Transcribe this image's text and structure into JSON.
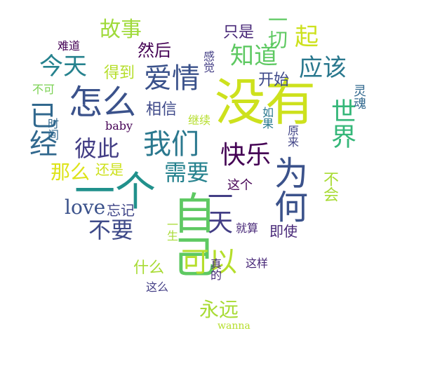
{
  "words": [
    {
      "text": "没有",
      "color": "#cde11d"
    },
    {
      "text": "自己",
      "color": "#5ec962"
    },
    {
      "text": "一个",
      "color": "#21918c"
    },
    {
      "text": "怎么",
      "color": "#3b528b"
    },
    {
      "text": "爱情",
      "color": "#3b528b"
    },
    {
      "text": "我们",
      "color": "#2a788e"
    },
    {
      "text": "快乐",
      "color": "#440154"
    },
    {
      "text": "为何",
      "color": "#3b528b"
    },
    {
      "text": "世界",
      "color": "#35b779"
    },
    {
      "text": "知道",
      "color": "#5ec962"
    },
    {
      "text": "应该",
      "color": "#2a788e"
    },
    {
      "text": "已经",
      "color": "#31688e"
    },
    {
      "text": "可以",
      "color": "#b5de2b"
    },
    {
      "text": "今天",
      "color": "#26828e"
    },
    {
      "text": "彼此",
      "color": "#433e85"
    },
    {
      "text": "需要",
      "color": "#26828e"
    },
    {
      "text": "一天",
      "color": "#433e85"
    },
    {
      "text": "不要",
      "color": "#3e4a89"
    },
    {
      "text": "故事",
      "color": "#9fda3a"
    },
    {
      "text": "一切",
      "color": "#5ec962"
    },
    {
      "text": "起",
      "color": "#cde11d"
    },
    {
      "text": "相信",
      "color": "#3e4989"
    },
    {
      "text": "开始",
      "color": "#3e4989"
    },
    {
      "text": "然后",
      "color": "#440154"
    },
    {
      "text": "只是",
      "color": "#482878"
    },
    {
      "text": "得到",
      "color": "#b5de2b"
    },
    {
      "text": "那么",
      "color": "#dde318"
    },
    {
      "text": "还是",
      "color": "#cde11d"
    },
    {
      "text": "永远",
      "color": "#a8db34"
    },
    {
      "text": "什么",
      "color": "#a8db34"
    },
    {
      "text": "love",
      "color": "#3b528b"
    },
    {
      "text": "忘记",
      "color": "#404688"
    },
    {
      "text": "baby",
      "color": "#440154"
    },
    {
      "text": "不会",
      "color": "#a8db34"
    },
    {
      "text": "即使",
      "color": "#482878"
    },
    {
      "text": "就算",
      "color": "#482878"
    },
    {
      "text": "这个",
      "color": "#440154"
    },
    {
      "text": "这样",
      "color": "#482878"
    },
    {
      "text": "这么",
      "color": "#433e85"
    },
    {
      "text": "一生",
      "color": "#a8db34"
    },
    {
      "text": "真的",
      "color": "#472d7b"
    },
    {
      "text": "难道",
      "color": "#440154"
    },
    {
      "text": "不可",
      "color": "#7ad151"
    },
    {
      "text": "时间",
      "color": "#31688e"
    },
    {
      "text": "感觉",
      "color": "#433e85"
    },
    {
      "text": "继续",
      "color": "#b5de2b"
    },
    {
      "text": "如果",
      "color": "#2a788e"
    },
    {
      "text": "原来",
      "color": "#414487"
    },
    {
      "text": "灵魂",
      "color": "#31688e"
    },
    {
      "text": "wanna",
      "color": "#b5de2b"
    }
  ]
}
